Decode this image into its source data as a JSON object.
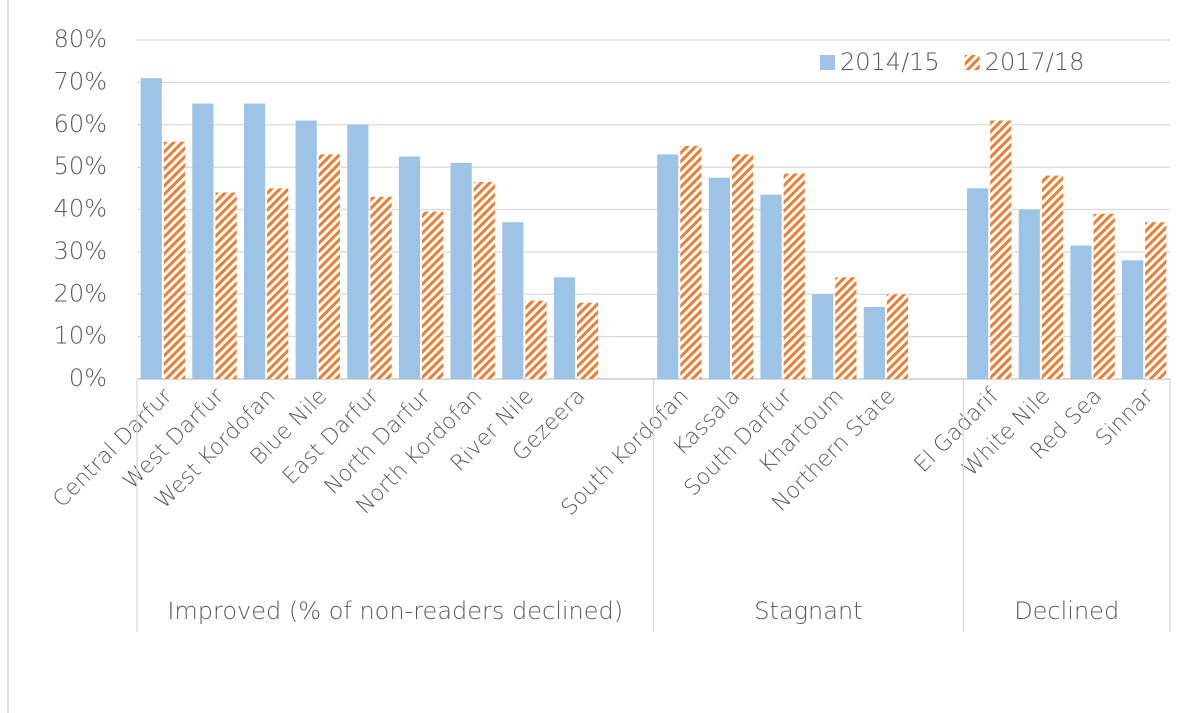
{
  "chart_data": {
    "type": "bar",
    "categories": [
      "Central Darfur",
      "West Darfur",
      "West Kordofan",
      "Blue Nile",
      "East Darfur",
      "North Darfur",
      "North Kordofan",
      "River Nile",
      "Gezeera",
      null,
      "South Kordofan",
      "Kassala",
      "South Darfur",
      "Khartoum",
      "Northern State",
      null,
      "El Gadarif",
      "White Nile",
      "Red Sea",
      "Sinnar"
    ],
    "group_labels": [
      "Improved (% of non-readers declined)",
      "Stagnant",
      "Declined"
    ],
    "series": [
      {
        "name": "2014/15",
        "color": "#9dc3e6",
        "values": [
          71,
          65,
          65,
          61,
          60,
          52.5,
          51,
          37,
          24,
          null,
          53,
          47.5,
          43.5,
          20,
          17,
          null,
          45,
          40,
          31.5,
          28
        ]
      },
      {
        "name": "2017/18",
        "color": "#ed7d31",
        "hatch": true,
        "values": [
          56,
          44,
          45,
          53,
          43,
          39.5,
          46.5,
          18.5,
          18,
          null,
          55,
          53,
          48.5,
          24,
          20,
          null,
          61,
          48,
          39,
          37
        ]
      }
    ],
    "ylim": [
      0,
      80
    ],
    "yticks": [
      {
        "value": 0,
        "label": "0%"
      },
      {
        "value": 10,
        "label": "10%"
      },
      {
        "value": 20,
        "label": "20%"
      },
      {
        "value": 30,
        "label": "30%"
      },
      {
        "value": 40,
        "label": "40%"
      },
      {
        "value": 50,
        "label": "50%"
      },
      {
        "value": 60,
        "label": "60%"
      },
      {
        "value": 70,
        "label": "70%"
      },
      {
        "value": 80,
        "label": "80%"
      }
    ],
    "grid": true,
    "legend": "top-right"
  }
}
